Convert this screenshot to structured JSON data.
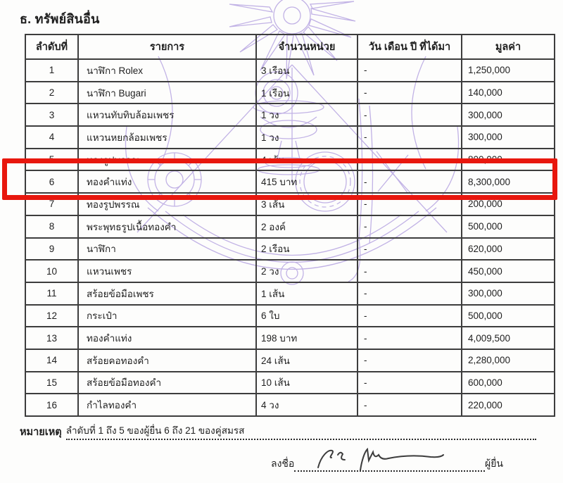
{
  "page": {
    "section_title": "ธ. ทรัพย์สินอื่น"
  },
  "table": {
    "headers": [
      "ลำดับที่",
      "รายการ",
      "จำนวนหน่วย",
      "วัน เดือน ปี ที่ได้มา",
      "มูลค่า"
    ],
    "rows": [
      {
        "no": "1",
        "item": "นาฬิกา Rolex",
        "qty": "3 เรือน",
        "date": "-",
        "value": "1,250,000"
      },
      {
        "no": "2",
        "item": "นาฬิกา Bugari",
        "qty": "1 เรือน",
        "date": "-",
        "value": "140,000"
      },
      {
        "no": "3",
        "item": "แหวนทับทิบล้อมเพชร",
        "qty": "1 วง",
        "date": "-",
        "value": "300,000"
      },
      {
        "no": "4",
        "item": "แหวนหยกล้อมเพชร",
        "qty": "1 วง",
        "date": "-",
        "value": "300,000"
      },
      {
        "no": "5",
        "item": "ทองรูปพรรณ",
        "qty": "4 เส้น",
        "date": "-",
        "value": "800,000"
      },
      {
        "no": "6",
        "item": "ทองคำแท่ง",
        "qty": "415 บาท",
        "date": "-",
        "value": "8,300,000"
      },
      {
        "no": "7",
        "item": "ทองรูปพรรณ",
        "qty": "3 เส้น",
        "date": "-",
        "value": "200,000"
      },
      {
        "no": "8",
        "item": "พระพุทธรูปเนื้อทองคำ",
        "qty": "2 องค์",
        "date": "-",
        "value": "500,000"
      },
      {
        "no": "9",
        "item": "นาฬิกา",
        "qty": "2 เรือน",
        "date": "-",
        "value": "620,000"
      },
      {
        "no": "10",
        "item": "แหวนเพชร",
        "qty": "2 วง",
        "date": "-",
        "value": "450,000"
      },
      {
        "no": "11",
        "item": "สร้อยข้อมือเพชร",
        "qty": "1 เส้น",
        "date": "-",
        "value": "300,000"
      },
      {
        "no": "12",
        "item": "กระเป๋า",
        "qty": "6 ใบ",
        "date": "-",
        "value": "500,000"
      },
      {
        "no": "13",
        "item": "ทองคำแท่ง",
        "qty": "198 บาท",
        "date": "-",
        "value": "4,009,500"
      },
      {
        "no": "14",
        "item": "สร้อยคอทองคำ",
        "qty": "24 เส้น",
        "date": "-",
        "value": "2,280,000"
      },
      {
        "no": "15",
        "item": "สร้อยข้อมือทองคำ",
        "qty": "10 เส้น",
        "date": "-",
        "value": "600,000"
      },
      {
        "no": "16",
        "item": "กำไลทองคำ",
        "qty": "4 วง",
        "date": "-",
        "value": "220,000"
      }
    ]
  },
  "note": {
    "label": "หมายเหตุ",
    "text": "ลำดับที่ 1 ถึง 5 ของผู้ยื่น 6 ถึง 21 ของคู่สมรส"
  },
  "signature": {
    "prefix": "ลงชื่อ",
    "suffix": "ผู้ยื่น"
  },
  "highlight": {
    "row_no": "6",
    "color": "#e8170e"
  },
  "watermark": {
    "name": "garuda-seal-watermark",
    "color": "#b3a0e0"
  }
}
